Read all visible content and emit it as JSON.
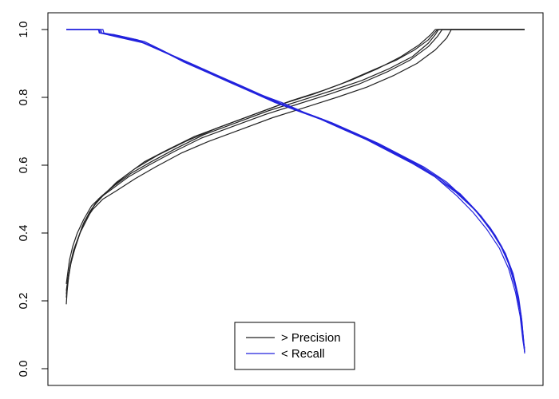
{
  "chart_data": {
    "type": "line",
    "title": "",
    "xlabel": "",
    "ylabel": "",
    "xlim": [
      0,
      1
    ],
    "ylim": [
      0,
      1
    ],
    "x_ticks_shown": false,
    "y_ticks": [
      "0.0",
      "0.2",
      "0.4",
      "0.6",
      "0.8",
      "1.0"
    ],
    "y_tick_values": [
      0.0,
      0.2,
      0.4,
      0.6,
      0.8,
      1.0
    ],
    "grid": false,
    "legend_position": "bottom-center",
    "legend": [
      {
        "label": "> Precision",
        "color": "#222222"
      },
      {
        "label": "< Recall",
        "color": "#2222dd"
      }
    ],
    "series": [
      {
        "group": "precision",
        "color": "#222222",
        "points": [
          [
            0.0,
            0.19
          ],
          [
            0.002,
            0.23
          ],
          [
            0.005,
            0.27
          ],
          [
            0.01,
            0.31
          ],
          [
            0.018,
            0.35
          ],
          [
            0.03,
            0.4
          ],
          [
            0.045,
            0.44
          ],
          [
            0.06,
            0.48
          ],
          [
            0.08,
            0.51
          ],
          [
            0.11,
            0.55
          ],
          [
            0.15,
            0.59
          ],
          [
            0.2,
            0.63
          ],
          [
            0.26,
            0.67
          ],
          [
            0.33,
            0.71
          ],
          [
            0.4,
            0.745
          ],
          [
            0.47,
            0.78
          ],
          [
            0.54,
            0.81
          ],
          [
            0.6,
            0.84
          ],
          [
            0.66,
            0.875
          ],
          [
            0.72,
            0.91
          ],
          [
            0.76,
            0.94
          ],
          [
            0.79,
            0.97
          ],
          [
            0.803,
            0.99
          ],
          [
            0.81,
            1.0
          ],
          [
            1.0,
            1.0
          ]
        ]
      },
      {
        "group": "precision",
        "color": "#222222",
        "points": [
          [
            0.0,
            0.21
          ],
          [
            0.003,
            0.25
          ],
          [
            0.007,
            0.29
          ],
          [
            0.013,
            0.33
          ],
          [
            0.022,
            0.37
          ],
          [
            0.035,
            0.42
          ],
          [
            0.05,
            0.46
          ],
          [
            0.07,
            0.5
          ],
          [
            0.095,
            0.53
          ],
          [
            0.13,
            0.57
          ],
          [
            0.17,
            0.61
          ],
          [
            0.22,
            0.645
          ],
          [
            0.28,
            0.685
          ],
          [
            0.35,
            0.72
          ],
          [
            0.42,
            0.755
          ],
          [
            0.49,
            0.79
          ],
          [
            0.56,
            0.82
          ],
          [
            0.62,
            0.85
          ],
          [
            0.68,
            0.885
          ],
          [
            0.73,
            0.92
          ],
          [
            0.77,
            0.955
          ],
          [
            0.795,
            0.985
          ],
          [
            0.805,
            1.0
          ],
          [
            1.0,
            1.0
          ]
        ]
      },
      {
        "group": "precision",
        "color": "#222222",
        "points": [
          [
            0.0,
            0.22
          ],
          [
            0.003,
            0.26
          ],
          [
            0.008,
            0.3
          ],
          [
            0.015,
            0.34
          ],
          [
            0.025,
            0.38
          ],
          [
            0.038,
            0.43
          ],
          [
            0.055,
            0.47
          ],
          [
            0.075,
            0.505
          ],
          [
            0.1,
            0.53
          ],
          [
            0.135,
            0.565
          ],
          [
            0.18,
            0.6
          ],
          [
            0.235,
            0.64
          ],
          [
            0.295,
            0.68
          ],
          [
            0.365,
            0.715
          ],
          [
            0.435,
            0.75
          ],
          [
            0.505,
            0.78
          ],
          [
            0.575,
            0.81
          ],
          [
            0.64,
            0.84
          ],
          [
            0.7,
            0.875
          ],
          [
            0.75,
            0.91
          ],
          [
            0.79,
            0.95
          ],
          [
            0.81,
            0.98
          ],
          [
            0.82,
            1.0
          ],
          [
            1.0,
            1.0
          ]
        ]
      },
      {
        "group": "precision",
        "color": "#222222",
        "points": [
          [
            0.0,
            0.23
          ],
          [
            0.004,
            0.27
          ],
          [
            0.009,
            0.31
          ],
          [
            0.016,
            0.35
          ],
          [
            0.027,
            0.39
          ],
          [
            0.04,
            0.435
          ],
          [
            0.058,
            0.47
          ],
          [
            0.08,
            0.5
          ],
          [
            0.11,
            0.525
          ],
          [
            0.15,
            0.56
          ],
          [
            0.195,
            0.595
          ],
          [
            0.25,
            0.635
          ],
          [
            0.31,
            0.67
          ],
          [
            0.38,
            0.705
          ],
          [
            0.45,
            0.74
          ],
          [
            0.52,
            0.77
          ],
          [
            0.59,
            0.8
          ],
          [
            0.655,
            0.83
          ],
          [
            0.715,
            0.865
          ],
          [
            0.765,
            0.9
          ],
          [
            0.805,
            0.94
          ],
          [
            0.83,
            0.975
          ],
          [
            0.84,
            1.0
          ],
          [
            1.0,
            1.0
          ]
        ]
      },
      {
        "group": "precision",
        "color": "#222222",
        "points": [
          [
            0.0,
            0.25
          ],
          [
            0.003,
            0.28
          ],
          [
            0.007,
            0.32
          ],
          [
            0.014,
            0.36
          ],
          [
            0.024,
            0.4
          ],
          [
            0.038,
            0.44
          ],
          [
            0.055,
            0.48
          ],
          [
            0.078,
            0.51
          ],
          [
            0.105,
            0.54
          ],
          [
            0.14,
            0.575
          ],
          [
            0.185,
            0.61
          ],
          [
            0.24,
            0.65
          ],
          [
            0.3,
            0.69
          ],
          [
            0.37,
            0.725
          ],
          [
            0.44,
            0.76
          ],
          [
            0.51,
            0.79
          ],
          [
            0.58,
            0.82
          ],
          [
            0.645,
            0.85
          ],
          [
            0.705,
            0.885
          ],
          [
            0.755,
            0.92
          ],
          [
            0.79,
            0.96
          ],
          [
            0.805,
            0.985
          ],
          [
            0.812,
            1.0
          ],
          [
            1.0,
            1.0
          ]
        ]
      },
      {
        "group": "recall",
        "color": "#2222dd",
        "points": [
          [
            0.0,
            1.0
          ],
          [
            0.07,
            1.0
          ],
          [
            0.072,
            0.99
          ],
          [
            0.1,
            0.985
          ],
          [
            0.15,
            0.97
          ],
          [
            0.2,
            0.945
          ],
          [
            0.25,
            0.91
          ],
          [
            0.3,
            0.88
          ],
          [
            0.35,
            0.85
          ],
          [
            0.4,
            0.82
          ],
          [
            0.45,
            0.79
          ],
          [
            0.5,
            0.765
          ],
          [
            0.55,
            0.74
          ],
          [
            0.6,
            0.71
          ],
          [
            0.65,
            0.68
          ],
          [
            0.7,
            0.645
          ],
          [
            0.75,
            0.61
          ],
          [
            0.8,
            0.57
          ],
          [
            0.85,
            0.52
          ],
          [
            0.89,
            0.47
          ],
          [
            0.92,
            0.42
          ],
          [
            0.945,
            0.37
          ],
          [
            0.965,
            0.31
          ],
          [
            0.98,
            0.24
          ],
          [
            0.99,
            0.17
          ],
          [
            0.996,
            0.1
          ],
          [
            1.0,
            0.05
          ]
        ]
      },
      {
        "group": "recall",
        "color": "#2222dd",
        "points": [
          [
            0.0,
            1.0
          ],
          [
            0.075,
            1.0
          ],
          [
            0.078,
            0.99
          ],
          [
            0.11,
            0.98
          ],
          [
            0.16,
            0.965
          ],
          [
            0.21,
            0.935
          ],
          [
            0.26,
            0.905
          ],
          [
            0.31,
            0.875
          ],
          [
            0.36,
            0.845
          ],
          [
            0.41,
            0.815
          ],
          [
            0.46,
            0.785
          ],
          [
            0.51,
            0.76
          ],
          [
            0.56,
            0.735
          ],
          [
            0.61,
            0.705
          ],
          [
            0.66,
            0.675
          ],
          [
            0.71,
            0.64
          ],
          [
            0.76,
            0.605
          ],
          [
            0.81,
            0.565
          ],
          [
            0.86,
            0.515
          ],
          [
            0.895,
            0.465
          ],
          [
            0.925,
            0.415
          ],
          [
            0.95,
            0.36
          ],
          [
            0.968,
            0.3
          ],
          [
            0.982,
            0.23
          ],
          [
            0.992,
            0.16
          ],
          [
            0.997,
            0.09
          ],
          [
            1.0,
            0.045
          ]
        ]
      },
      {
        "group": "recall",
        "color": "#2222dd",
        "points": [
          [
            0.0,
            1.0
          ],
          [
            0.07,
            1.0
          ],
          [
            0.073,
            0.99
          ],
          [
            0.12,
            0.975
          ],
          [
            0.17,
            0.96
          ],
          [
            0.22,
            0.93
          ],
          [
            0.27,
            0.9
          ],
          [
            0.32,
            0.87
          ],
          [
            0.37,
            0.84
          ],
          [
            0.42,
            0.81
          ],
          [
            0.47,
            0.785
          ],
          [
            0.52,
            0.755
          ],
          [
            0.57,
            0.73
          ],
          [
            0.62,
            0.7
          ],
          [
            0.67,
            0.67
          ],
          [
            0.72,
            0.635
          ],
          [
            0.77,
            0.6
          ],
          [
            0.82,
            0.555
          ],
          [
            0.865,
            0.505
          ],
          [
            0.9,
            0.455
          ],
          [
            0.93,
            0.4
          ],
          [
            0.955,
            0.345
          ],
          [
            0.972,
            0.285
          ],
          [
            0.985,
            0.215
          ],
          [
            0.993,
            0.15
          ],
          [
            0.998,
            0.08
          ],
          [
            1.0,
            0.05
          ]
        ]
      },
      {
        "group": "recall",
        "color": "#2222dd",
        "points": [
          [
            0.0,
            1.0
          ],
          [
            0.08,
            1.0
          ],
          [
            0.082,
            0.99
          ],
          [
            0.12,
            0.98
          ],
          [
            0.17,
            0.965
          ],
          [
            0.23,
            0.925
          ],
          [
            0.28,
            0.895
          ],
          [
            0.33,
            0.865
          ],
          [
            0.38,
            0.835
          ],
          [
            0.43,
            0.805
          ],
          [
            0.48,
            0.775
          ],
          [
            0.53,
            0.75
          ],
          [
            0.58,
            0.725
          ],
          [
            0.63,
            0.695
          ],
          [
            0.68,
            0.665
          ],
          [
            0.73,
            0.63
          ],
          [
            0.78,
            0.595
          ],
          [
            0.83,
            0.55
          ],
          [
            0.87,
            0.5
          ],
          [
            0.905,
            0.45
          ],
          [
            0.935,
            0.395
          ],
          [
            0.958,
            0.34
          ],
          [
            0.975,
            0.28
          ],
          [
            0.987,
            0.21
          ],
          [
            0.994,
            0.14
          ],
          [
            0.998,
            0.075
          ],
          [
            1.0,
            0.06
          ]
        ]
      },
      {
        "group": "recall",
        "color": "#2222dd",
        "points": [
          [
            0.0,
            1.0
          ],
          [
            0.072,
            1.0
          ],
          [
            0.075,
            0.99
          ],
          [
            0.105,
            0.985
          ],
          [
            0.155,
            0.97
          ],
          [
            0.205,
            0.94
          ],
          [
            0.255,
            0.905
          ],
          [
            0.305,
            0.875
          ],
          [
            0.355,
            0.845
          ],
          [
            0.405,
            0.815
          ],
          [
            0.455,
            0.785
          ],
          [
            0.505,
            0.76
          ],
          [
            0.555,
            0.735
          ],
          [
            0.605,
            0.705
          ],
          [
            0.655,
            0.675
          ],
          [
            0.705,
            0.64
          ],
          [
            0.755,
            0.605
          ],
          [
            0.805,
            0.565
          ],
          [
            0.852,
            0.51
          ],
          [
            0.888,
            0.46
          ],
          [
            0.918,
            0.41
          ],
          [
            0.945,
            0.355
          ],
          [
            0.965,
            0.295
          ],
          [
            0.98,
            0.225
          ],
          [
            0.99,
            0.155
          ],
          [
            0.996,
            0.085
          ],
          [
            1.0,
            0.05
          ]
        ]
      }
    ]
  }
}
